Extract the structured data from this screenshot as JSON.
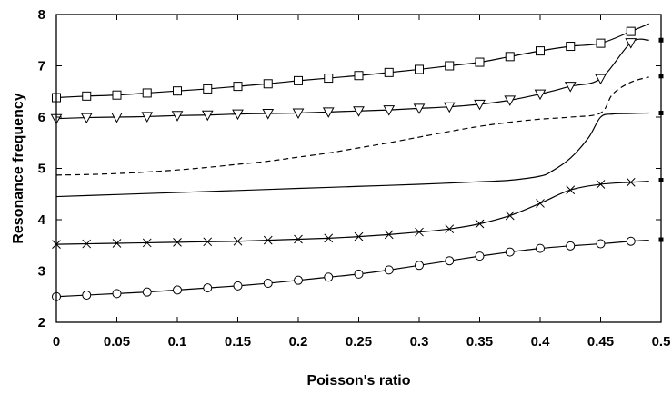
{
  "chart_data": {
    "type": "line",
    "xlabel": "Poisson's ratio",
    "ylabel": "Resonance frequency",
    "xlim": [
      0,
      0.5
    ],
    "ylim": [
      2,
      8
    ],
    "xticks": [
      0,
      0.05,
      0.1,
      0.15,
      0.2,
      0.25,
      0.3,
      0.35,
      0.4,
      0.45,
      0.5
    ],
    "xtick_labels": [
      "0",
      "0.05",
      "0.1",
      "0.15",
      "0.2",
      "0.25",
      "0.3",
      "0.35",
      "0.4",
      "0.45",
      "0.5"
    ],
    "yticks": [
      2,
      3,
      4,
      5,
      6,
      7,
      8
    ],
    "ytick_labels": [
      "2",
      "3",
      "4",
      "5",
      "6",
      "7",
      "8"
    ],
    "grid": false,
    "legend": "none",
    "series": [
      {
        "marker": "square",
        "line": "solid",
        "x": [
          0,
          0.025,
          0.05,
          0.075,
          0.1,
          0.125,
          0.15,
          0.175,
          0.2,
          0.225,
          0.25,
          0.275,
          0.3,
          0.325,
          0.35,
          0.375,
          0.4,
          0.425,
          0.45,
          0.475,
          0.49
        ],
        "y": [
          6.38,
          6.41,
          6.43,
          6.47,
          6.51,
          6.55,
          6.6,
          6.65,
          6.71,
          6.76,
          6.81,
          6.87,
          6.93,
          7.0,
          7.07,
          7.18,
          7.29,
          7.38,
          7.44,
          7.67,
          7.82
        ]
      },
      {
        "marker": "triangle-down",
        "line": "solid",
        "x": [
          0,
          0.025,
          0.05,
          0.075,
          0.1,
          0.125,
          0.15,
          0.175,
          0.2,
          0.225,
          0.25,
          0.275,
          0.3,
          0.325,
          0.35,
          0.375,
          0.4,
          0.425,
          0.45,
          0.475,
          0.49
        ],
        "y": [
          5.97,
          5.99,
          6.0,
          6.01,
          6.03,
          6.04,
          6.06,
          6.07,
          6.08,
          6.1,
          6.12,
          6.14,
          6.17,
          6.2,
          6.25,
          6.33,
          6.45,
          6.6,
          6.75,
          7.45,
          7.5
        ]
      },
      {
        "marker": "none",
        "line": "dashed",
        "x": [
          0,
          0.025,
          0.05,
          0.075,
          0.1,
          0.125,
          0.15,
          0.175,
          0.2,
          0.225,
          0.25,
          0.275,
          0.3,
          0.325,
          0.35,
          0.375,
          0.4,
          0.425,
          0.45,
          0.46,
          0.475,
          0.49
        ],
        "y": [
          4.87,
          4.88,
          4.9,
          4.93,
          4.97,
          5.02,
          5.08,
          5.14,
          5.22,
          5.3,
          5.4,
          5.5,
          5.61,
          5.72,
          5.82,
          5.9,
          5.96,
          6.0,
          6.08,
          6.45,
          6.68,
          6.78
        ]
      },
      {
        "marker": "none",
        "line": "solid",
        "x": [
          0,
          0.05,
          0.1,
          0.15,
          0.2,
          0.25,
          0.3,
          0.35,
          0.375,
          0.4,
          0.41,
          0.425,
          0.44,
          0.45,
          0.46,
          0.475,
          0.49
        ],
        "y": [
          4.45,
          4.49,
          4.53,
          4.57,
          4.61,
          4.65,
          4.69,
          4.74,
          4.77,
          4.85,
          4.95,
          5.2,
          5.6,
          6.0,
          6.06,
          6.07,
          6.08
        ]
      },
      {
        "marker": "x",
        "line": "solid",
        "x": [
          0,
          0.025,
          0.05,
          0.075,
          0.1,
          0.125,
          0.15,
          0.175,
          0.2,
          0.225,
          0.25,
          0.275,
          0.3,
          0.325,
          0.35,
          0.375,
          0.4,
          0.425,
          0.45,
          0.475,
          0.49
        ],
        "y": [
          3.52,
          3.53,
          3.54,
          3.55,
          3.56,
          3.57,
          3.58,
          3.6,
          3.62,
          3.64,
          3.67,
          3.71,
          3.76,
          3.82,
          3.92,
          4.08,
          4.32,
          4.58,
          4.69,
          4.73,
          4.75
        ]
      },
      {
        "marker": "circle",
        "line": "solid",
        "x": [
          0,
          0.025,
          0.05,
          0.075,
          0.1,
          0.125,
          0.15,
          0.175,
          0.2,
          0.225,
          0.25,
          0.275,
          0.3,
          0.325,
          0.35,
          0.375,
          0.4,
          0.425,
          0.45,
          0.475,
          0.49
        ],
        "y": [
          2.5,
          2.53,
          2.56,
          2.59,
          2.63,
          2.67,
          2.71,
          2.76,
          2.82,
          2.88,
          2.94,
          3.02,
          3.11,
          3.2,
          3.29,
          3.37,
          3.44,
          3.49,
          3.53,
          3.58,
          3.6
        ]
      }
    ],
    "edge_markers": {
      "marker": "filled-square",
      "x": 0.5,
      "y": [
        7.5,
        6.8,
        6.08,
        4.77,
        3.61
      ]
    }
  }
}
